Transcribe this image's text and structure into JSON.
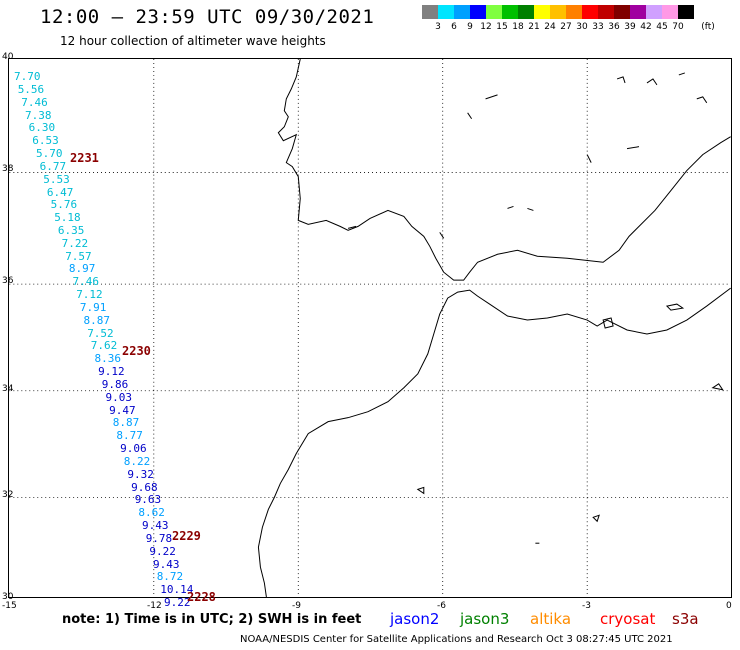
{
  "header": {
    "title": "12:00 – 23:59 UTC 09/30/2021",
    "subtitle": "12 hour collection of altimeter wave heights"
  },
  "legend": {
    "unit": "(ft)",
    "colors": [
      "#808080",
      "#00e5ff",
      "#00a0ff",
      "#0000ff",
      "#80ff40",
      "#00c000",
      "#008000",
      "#ffff00",
      "#ffc000",
      "#ff8000",
      "#ff0000",
      "#c00000",
      "#800000",
      "#a000a0",
      "#d0a0ff",
      "#ff99e6",
      "#000000"
    ],
    "ticks": [
      "3",
      "6",
      "9",
      "12",
      "15",
      "18",
      "21",
      "24",
      "27",
      "30",
      "33",
      "36",
      "39",
      "42",
      "45",
      "70"
    ]
  },
  "axes": {
    "lat_labels": [
      "40",
      "38",
      "36",
      "34",
      "32",
      "30"
    ],
    "lon_labels": [
      "-15",
      "-12",
      "-9",
      "-6",
      "-3",
      "0"
    ]
  },
  "wave_heights": [
    {
      "v": "7.70",
      "c": "#00bcd4"
    },
    {
      "v": "5.56",
      "c": "#00bcd4"
    },
    {
      "v": "7.46",
      "c": "#00bcd4"
    },
    {
      "v": "7.38",
      "c": "#00bcd4"
    },
    {
      "v": "6.30",
      "c": "#00bcd4"
    },
    {
      "v": "6.53",
      "c": "#00bcd4"
    },
    {
      "v": "5.70",
      "c": "#00bcd4"
    },
    {
      "v": "6.77",
      "c": "#00bcd4"
    },
    {
      "v": "5.53",
      "c": "#00bcd4"
    },
    {
      "v": "6.47",
      "c": "#00bcd4"
    },
    {
      "v": "5.76",
      "c": "#00bcd4"
    },
    {
      "v": "5.18",
      "c": "#00bcd4"
    },
    {
      "v": "6.35",
      "c": "#00bcd4"
    },
    {
      "v": "7.22",
      "c": "#00bcd4"
    },
    {
      "v": "7.57",
      "c": "#00bcd4"
    },
    {
      "v": "8.97",
      "c": "#00a0ff"
    },
    {
      "v": "7.46",
      "c": "#00bcd4"
    },
    {
      "v": "7.12",
      "c": "#00bcd4"
    },
    {
      "v": "7.91",
      "c": "#00a0ff"
    },
    {
      "v": "8.87",
      "c": "#00a0ff"
    },
    {
      "v": "7.52",
      "c": "#00bcd4"
    },
    {
      "v": "7.62",
      "c": "#00bcd4"
    },
    {
      "v": "8.36",
      "c": "#00a0ff"
    },
    {
      "v": "9.12",
      "c": "#0000c8"
    },
    {
      "v": "9.86",
      "c": "#0000c8"
    },
    {
      "v": "9.03",
      "c": "#0000c8"
    },
    {
      "v": "9.47",
      "c": "#0000c8"
    },
    {
      "v": "8.87",
      "c": "#00a0ff"
    },
    {
      "v": "8.77",
      "c": "#00a0ff"
    },
    {
      "v": "9.06",
      "c": "#0000c8"
    },
    {
      "v": "8.22",
      "c": "#00a0ff"
    },
    {
      "v": "9.32",
      "c": "#0000c8"
    },
    {
      "v": "9.68",
      "c": "#0000c8"
    },
    {
      "v": "9.63",
      "c": "#0000c8"
    },
    {
      "v": "8.62",
      "c": "#00a0ff"
    },
    {
      "v": "9.43",
      "c": "#0000c8"
    },
    {
      "v": "9.78",
      "c": "#0000c8"
    },
    {
      "v": "9.22",
      "c": "#0000c8"
    },
    {
      "v": "9.43",
      "c": "#0000c8"
    },
    {
      "v": "8.72",
      "c": "#00a0ff"
    },
    {
      "v": "10.14",
      "c": "#0000c8"
    },
    {
      "v": "9.22",
      "c": "#0000c8"
    }
  ],
  "pass_ids": [
    "2231",
    "2230",
    "2229",
    "2228"
  ],
  "footer": {
    "note": "note: 1) Time is in UTC; 2) SWH is in feet",
    "satellites": [
      {
        "name": "jason2",
        "color": "#0000ff"
      },
      {
        "name": "jason3",
        "color": "#008000"
      },
      {
        "name": "altika",
        "color": "#ff8c00"
      },
      {
        "name": "cryosat",
        "color": "#ff0000"
      },
      {
        "name": "s3a",
        "color": "#8b0000"
      }
    ],
    "credit": "NOAA/NESDIS Center for Satellite Applications and Research    Oct  3 08:27:45 UTC 2021"
  }
}
